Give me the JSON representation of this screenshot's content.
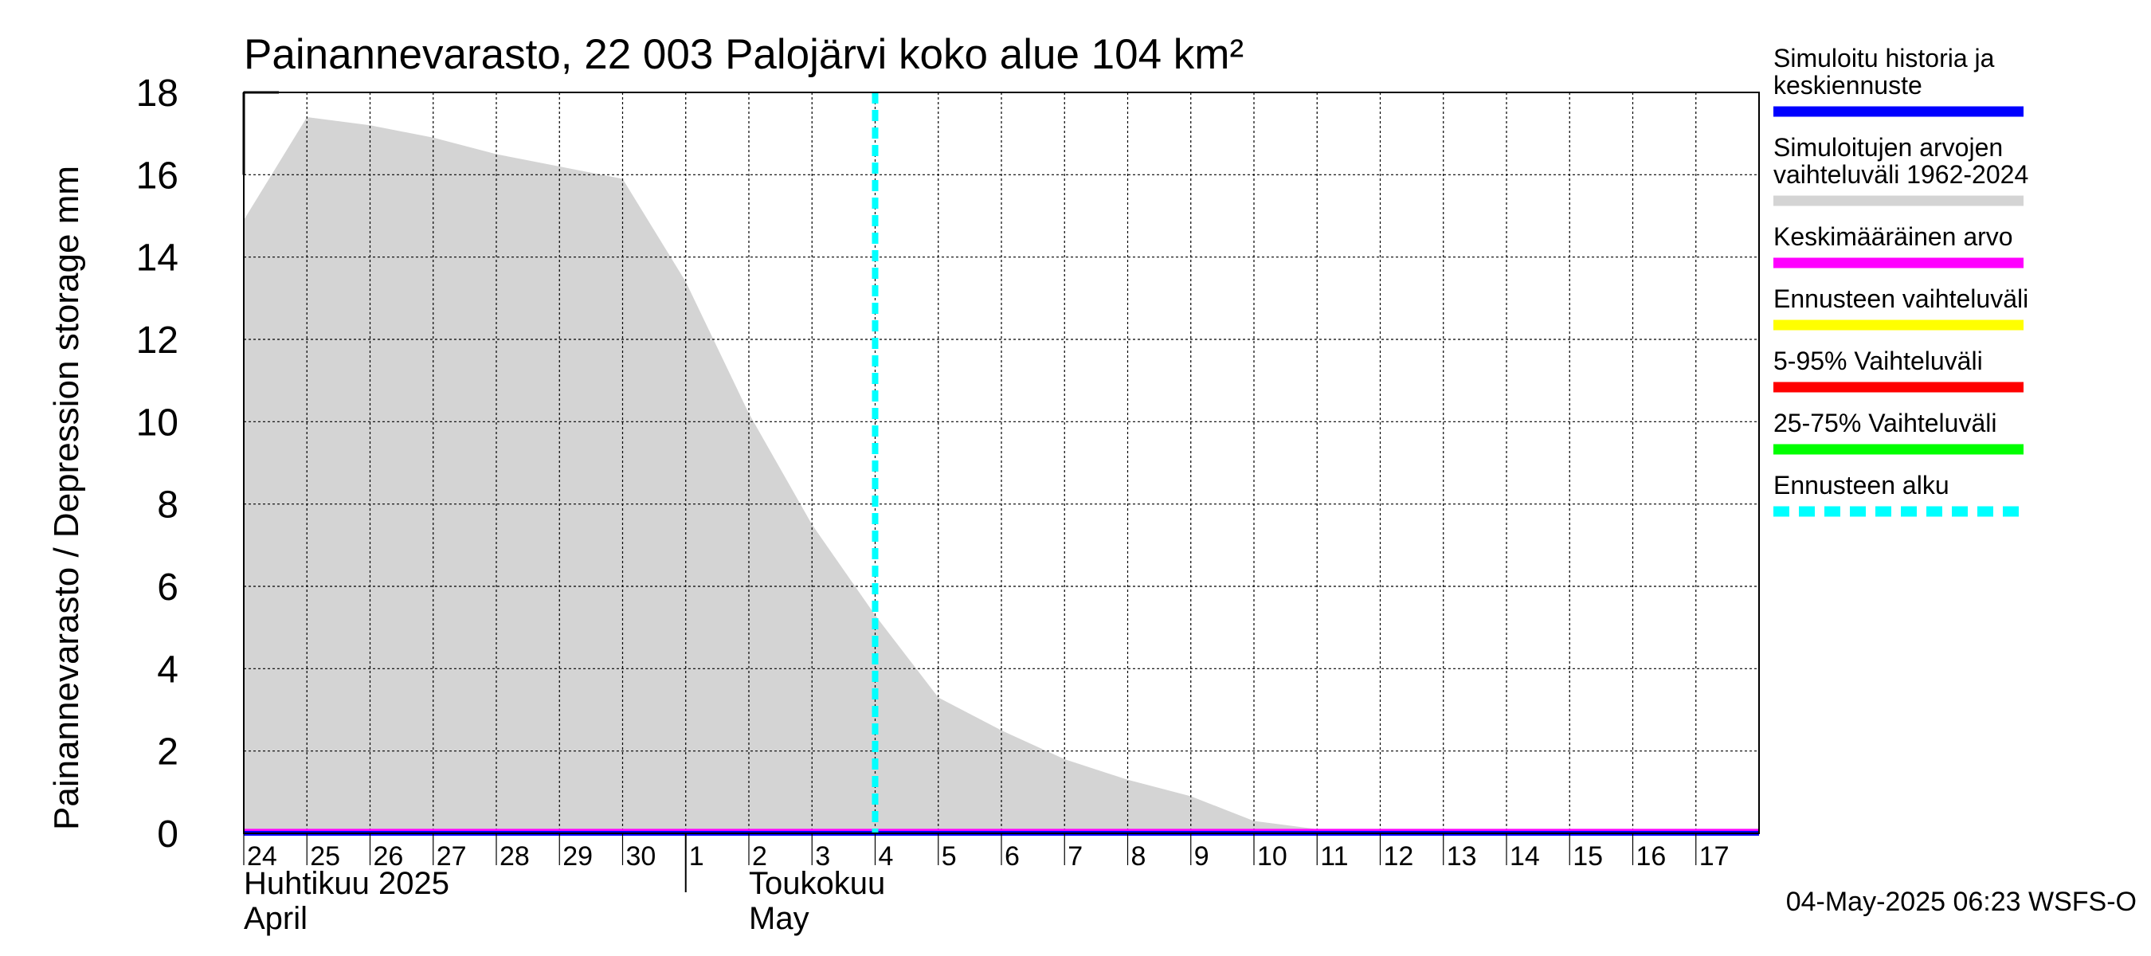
{
  "chart_data": {
    "type": "area",
    "title": "Painannevarasto, 22 003 Palojärvi koko alue 104 km²",
    "ylabel": "Painannevarasto / Depression storage    mm",
    "ylim": [
      0,
      18
    ],
    "yticks": [
      0,
      2,
      4,
      6,
      8,
      10,
      12,
      14,
      16,
      18
    ],
    "xlim": [
      "2025-04-24",
      "2025-05-18"
    ],
    "xtick_labels": [
      "24",
      "25",
      "26",
      "27",
      "28",
      "29",
      "30",
      "1",
      "2",
      "3",
      "4",
      "5",
      "6",
      "7",
      "8",
      "9",
      "10",
      "11",
      "12",
      "13",
      "14",
      "15",
      "16",
      "17"
    ],
    "month_labels": [
      {
        "line1": "Huhtikuu  2025",
        "line2": "April"
      },
      {
        "line1": "Toukokuu",
        "line2": "May"
      }
    ],
    "grid": true,
    "legend_placement": "right",
    "forecast_start": "2025-05-04T00:00",
    "series": [
      {
        "name": "Simuloitujen arvojen vaihteluväli 1962-2024",
        "kind": "band",
        "color": "#d4d4d4",
        "x": [
          "2025-04-24",
          "2025-04-25",
          "2025-04-26",
          "2025-04-27",
          "2025-04-28",
          "2025-04-29",
          "2025-04-30",
          "2025-05-01",
          "2025-05-02",
          "2025-05-03",
          "2025-05-04",
          "2025-05-05",
          "2025-05-06",
          "2025-05-07",
          "2025-05-08",
          "2025-05-09",
          "2025-05-10",
          "2025-05-11",
          "2025-05-12",
          "2025-05-13",
          "2025-05-14",
          "2025-05-15",
          "2025-05-16",
          "2025-05-17",
          "2025-05-18"
        ],
        "upper": [
          14.9,
          17.4,
          17.2,
          16.9,
          16.5,
          16.2,
          15.9,
          13.4,
          10.2,
          7.5,
          5.3,
          3.3,
          2.5,
          1.8,
          1.3,
          0.9,
          0.3,
          0.1,
          0.05,
          0.05,
          0.05,
          0.05,
          0.05,
          0.05,
          0.05
        ],
        "lower": [
          0,
          0,
          0,
          0,
          0,
          0,
          0,
          0,
          0,
          0,
          0,
          0,
          0,
          0,
          0,
          0,
          0,
          0,
          0,
          0,
          0,
          0,
          0,
          0,
          0
        ]
      },
      {
        "name": "Keskimääräinen arvo",
        "kind": "line",
        "color": "#ff00ff",
        "x": [
          "2025-04-24",
          "2025-05-18"
        ],
        "values": [
          0.05,
          0.05
        ]
      },
      {
        "name": "Simuloitu historia ja keskiennuste",
        "kind": "line",
        "color": "#0000ff",
        "x": [
          "2025-04-24",
          "2025-05-18"
        ],
        "values": [
          0,
          0
        ]
      }
    ]
  },
  "legend": [
    {
      "lines": [
        "Simuloitu historia ja",
        "keskiennuste"
      ],
      "color": "#0000ff",
      "style": "solid"
    },
    {
      "lines": [
        "Simuloitujen arvojen",
        "vaihteluväli 1962-2024"
      ],
      "color": "#d4d4d4",
      "style": "solid"
    },
    {
      "lines": [
        "Keskimääräinen arvo"
      ],
      "color": "#ff00ff",
      "style": "solid"
    },
    {
      "lines": [
        "Ennusteen vaihteluväli"
      ],
      "color": "#ffff00",
      "style": "solid"
    },
    {
      "lines": [
        "5-95% Vaihteluväli"
      ],
      "color": "#ff0000",
      "style": "solid"
    },
    {
      "lines": [
        "25-75% Vaihteluväli"
      ],
      "color": "#00ff00",
      "style": "solid"
    },
    {
      "lines": [
        "Ennusteen alku"
      ],
      "color": "#00ffff",
      "style": "dashed"
    }
  ],
  "footer": "04-May-2025 06:23 WSFS-O"
}
